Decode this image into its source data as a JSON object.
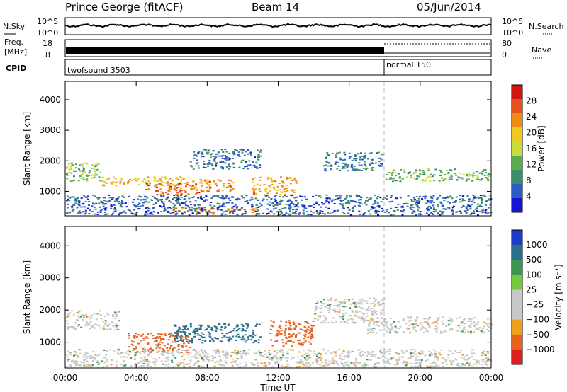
{
  "header": {
    "station": "Prince George (fitACF)",
    "beam": "Beam 14",
    "date": "05/Jun/2014"
  },
  "status_panels": {
    "nsky_label": "N.Sky",
    "nsky_ticks": [
      "10^5",
      "10^0"
    ],
    "nsearch_label": "N.Search",
    "freq_label_line1": "Freq.",
    "freq_label_line2": "[MHz]",
    "freq_ticks": [
      "18",
      "8"
    ],
    "nave_label": "Nave",
    "nave_ticks": [
      "80",
      "0"
    ],
    "cpid_label": "CPID",
    "cpid_segments": [
      {
        "name": "twofsound 3503",
        "start_hour": 0,
        "end_hour": 18
      },
      {
        "name": "normal 150",
        "start_hour": 18,
        "end_hour": 24
      }
    ]
  },
  "time_axis": {
    "label": "Time UT",
    "ticks": [
      "00:00",
      "04:00",
      "08:00",
      "12:00",
      "16:00",
      "20:00",
      "00:00"
    ],
    "range_hours": [
      0,
      24
    ]
  },
  "colors": {
    "power": [
      "#1414d2",
      "#2d5ac8",
      "#3c8c6e",
      "#5aaa50",
      "#c8dc3c",
      "#f0c81e",
      "#f08c14",
      "#e6501e",
      "#d21414"
    ],
    "velocity": [
      "#1e3cc8",
      "#2d6e8c",
      "#3c9650",
      "#78c83c",
      "#c8c8c8",
      "#c8c8c8",
      "#f0a01e",
      "#e6641e",
      "#dc1e1e"
    ]
  },
  "chart_data": [
    {
      "type": "heatmap",
      "name": "power",
      "ylabel": "Slant Range [km]",
      "xlabel": "",
      "yticks": [
        "1000",
        "2000",
        "3000",
        "4000"
      ],
      "ylim": [
        200,
        4600
      ],
      "xlim": [
        0,
        24
      ],
      "colorbar_label": "Power [dB]",
      "colorbar_ticks": [
        "4",
        "8",
        "12",
        "16",
        "20",
        "24",
        "28"
      ],
      "colorbar_range": [
        0,
        32
      ],
      "features": [
        {
          "t0": 0.0,
          "t1": 2.0,
          "r0": 1350,
          "r1": 1950,
          "level": 14
        },
        {
          "t0": 2.0,
          "t1": 7.0,
          "r0": 1200,
          "r1": 1500,
          "level": 20
        },
        {
          "t0": 4.5,
          "t1": 7.5,
          "r0": 900,
          "r1": 1300,
          "level": 26
        },
        {
          "t0": 7.0,
          "t1": 9.5,
          "r0": 1000,
          "r1": 1400,
          "level": 24
        },
        {
          "t0": 10.5,
          "t1": 13.0,
          "r0": 900,
          "r1": 1500,
          "level": 22
        },
        {
          "t0": 6.0,
          "t1": 11.0,
          "r0": 300,
          "r1": 500,
          "level": 24
        },
        {
          "t0": 0.0,
          "t1": 24.0,
          "r0": 250,
          "r1": 900,
          "level": 6
        },
        {
          "t0": 18.0,
          "t1": 24.0,
          "r0": 1350,
          "r1": 1750,
          "level": 12
        },
        {
          "t0": 14.5,
          "t1": 18.0,
          "r0": 1700,
          "r1": 2300,
          "level": 8
        },
        {
          "t0": 7.0,
          "t1": 11.0,
          "r0": 1750,
          "r1": 2400,
          "level": 7
        }
      ]
    },
    {
      "type": "heatmap",
      "name": "velocity",
      "ylabel": "Slant Range [km]",
      "xlabel": "Time UT",
      "yticks": [
        "1000",
        "2000",
        "3000",
        "4000"
      ],
      "ylim": [
        200,
        4600
      ],
      "xlim": [
        0,
        24
      ],
      "colorbar_label": "Velocity [m s⁻¹]",
      "colorbar_ticks": [
        "1000",
        "500",
        "100",
        "25",
        "−25",
        "−100",
        "−500",
        "−1000"
      ],
      "features": [
        {
          "t0": 0.0,
          "t1": 3.0,
          "r0": 1400,
          "r1": 2000,
          "level": 0
        },
        {
          "t0": 3.5,
          "t1": 7.0,
          "r0": 700,
          "r1": 1300,
          "level": -150
        },
        {
          "t0": 6.0,
          "t1": 11.0,
          "r0": 1000,
          "r1": 1600,
          "level": 150
        },
        {
          "t0": 11.5,
          "t1": 14.0,
          "r0": 900,
          "r1": 1700,
          "level": -200
        },
        {
          "t0": 0.0,
          "t1": 24.0,
          "r0": 250,
          "r1": 800,
          "level": 0
        },
        {
          "t0": 17.0,
          "t1": 24.0,
          "r0": 1300,
          "r1": 1800,
          "level": 0
        },
        {
          "t0": 14.0,
          "t1": 18.0,
          "r0": 1600,
          "r1": 2400,
          "level": 0
        }
      ]
    }
  ]
}
